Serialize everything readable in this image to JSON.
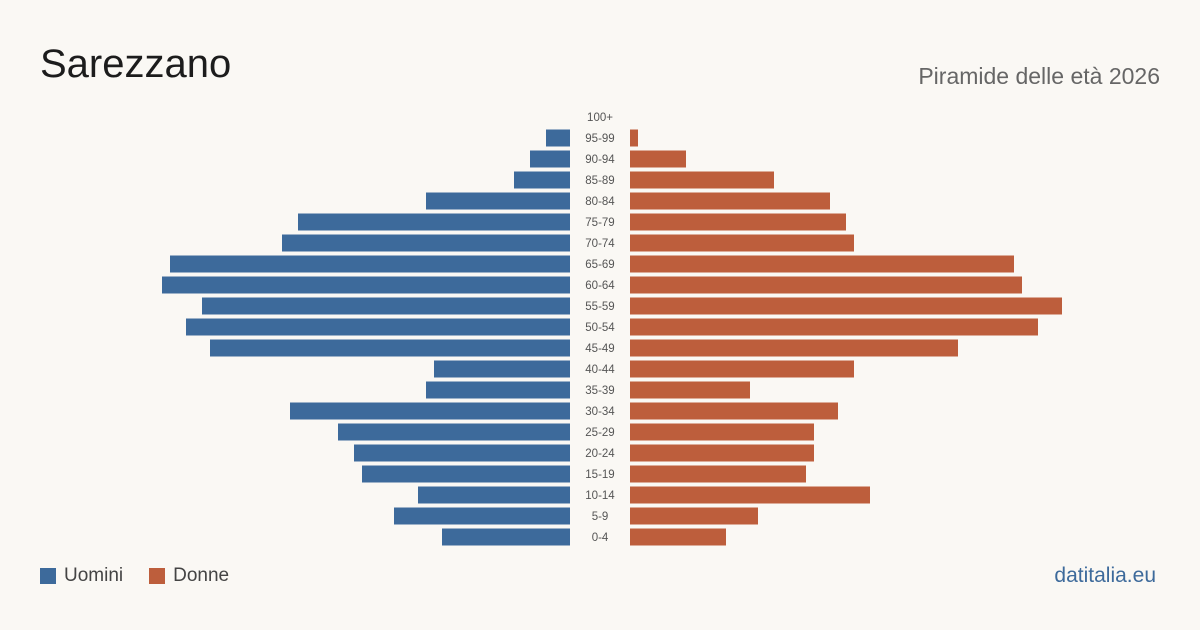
{
  "title": "Sarezzano",
  "subtitle": "Piramide delle età 2026",
  "source": "datitalia.eu",
  "colors": {
    "men": "#3d6a9b",
    "women": "#bd5e3c"
  },
  "chart_data": {
    "type": "bar",
    "orientation": "horizontal-population-pyramid",
    "categories": [
      "100+",
      "95-99",
      "90-94",
      "85-89",
      "80-84",
      "75-79",
      "70-74",
      "65-69",
      "60-64",
      "55-59",
      "50-54",
      "45-49",
      "40-44",
      "35-39",
      "30-34",
      "25-29",
      "20-24",
      "15-19",
      "10-14",
      "5-9",
      "0-4"
    ],
    "series": [
      {
        "name": "Uomini",
        "values": [
          0,
          3,
          5,
          7,
          18,
          34,
          36,
          50,
          51,
          46,
          48,
          45,
          17,
          18,
          35,
          29,
          27,
          26,
          19,
          22,
          16
        ]
      },
      {
        "name": "Donne",
        "values": [
          0,
          1,
          7,
          18,
          25,
          27,
          28,
          48,
          49,
          54,
          51,
          41,
          28,
          15,
          26,
          23,
          23,
          22,
          30,
          16,
          12
        ]
      }
    ],
    "xlim": [
      0,
      55
    ],
    "grid": false,
    "legend": "bottom-left"
  }
}
